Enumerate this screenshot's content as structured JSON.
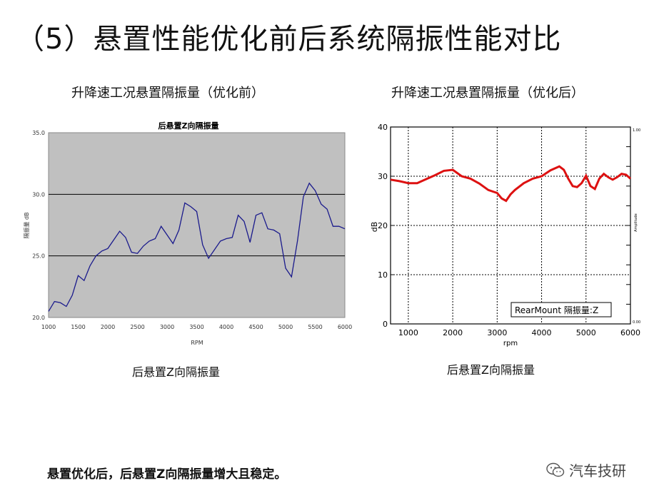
{
  "slide": {
    "title": "（5）悬置性能优化前后系统隔振性能对比",
    "conclusion": "悬置优化后，后悬置Z向隔振量增大且稳定。",
    "watermark": "汽车技研"
  },
  "left_panel": {
    "title": "升降速工况悬置隔振量（优化前）",
    "caption": "后悬置Z向隔振量"
  },
  "right_panel": {
    "title": "升降速工况悬置隔振量（优化后）",
    "caption": "后悬置Z向隔振量"
  },
  "colors": {
    "left_plot_bg": "#c0c0c0",
    "left_line": "#1a1a8c",
    "right_line": "#dd1111"
  },
  "chart_data": [
    {
      "type": "line",
      "title": "后悬置Z向隔振量",
      "xlabel": "RPM",
      "ylabel": "隔振量 dB",
      "xlim": [
        1000,
        6000
      ],
      "ylim": [
        20,
        35
      ],
      "x_ticks": [
        "1000",
        "1500",
        "2000",
        "2500",
        "3000",
        "3500",
        "4000",
        "4500",
        "5000",
        "5500",
        "6000"
      ],
      "y_ticks": [
        "20.0",
        "25.0",
        "30.0",
        "35.0"
      ],
      "grid": "horizontal",
      "series": [
        {
          "x": [
            1000,
            1100,
            1200,
            1300,
            1400,
            1500,
            1600,
            1700,
            1800,
            1900,
            2000,
            2100,
            2200,
            2300,
            2400,
            2500,
            2600,
            2700,
            2800,
            2900,
            3000,
            3100,
            3200,
            3300,
            3400,
            3500,
            3600,
            3700,
            3800,
            3900,
            4000,
            4100,
            4200,
            4300,
            4400,
            4500,
            4600,
            4700,
            4800,
            4900,
            5000,
            5100,
            5200,
            5300,
            5400,
            5500,
            5600,
            5700,
            5800,
            5900,
            6000
          ],
          "values": [
            20.5,
            21.3,
            21.2,
            20.9,
            21.8,
            23.4,
            23.0,
            24.2,
            25.0,
            25.4,
            25.6,
            26.3,
            27.0,
            26.5,
            25.3,
            25.2,
            25.8,
            26.2,
            26.4,
            27.4,
            26.7,
            26.0,
            27.1,
            29.3,
            29.0,
            28.6,
            25.9,
            24.8,
            25.5,
            26.2,
            26.4,
            26.5,
            28.3,
            27.8,
            26.1,
            28.3,
            28.5,
            27.2,
            27.1,
            26.8,
            24.0,
            23.3,
            26.2,
            29.8,
            30.9,
            30.3,
            29.2,
            28.8,
            27.4,
            27.4,
            27.2
          ]
        }
      ]
    },
    {
      "type": "line",
      "xlabel": "rpm",
      "ylabel": "dB",
      "xlim": [
        600,
        6000
      ],
      "ylim": [
        0,
        40
      ],
      "x_ticks": [
        "1000",
        "2000",
        "3000",
        "4000",
        "5000",
        "6000"
      ],
      "y_ticks": [
        "0",
        "10",
        "20",
        "30",
        "40"
      ],
      "right_axis_labels": [
        "1.00",
        "Amplitude",
        "0.00"
      ],
      "grid": "dotted",
      "legend": "bottom-right",
      "series": [
        {
          "name": "RearMount 隔振量:Z",
          "x": [
            600,
            800,
            1000,
            1200,
            1400,
            1600,
            1800,
            2000,
            2200,
            2400,
            2600,
            2800,
            3000,
            3100,
            3200,
            3300,
            3400,
            3600,
            3800,
            4000,
            4200,
            4400,
            4500,
            4600,
            4700,
            4800,
            4900,
            5000,
            5100,
            5200,
            5300,
            5400,
            5500,
            5600,
            5700,
            5800,
            5900,
            6000
          ],
          "values": [
            29.3,
            29.0,
            28.6,
            28.6,
            29.4,
            30.2,
            31.1,
            31.3,
            30.0,
            29.5,
            28.5,
            27.2,
            26.6,
            25.5,
            25.0,
            26.3,
            27.2,
            28.6,
            29.5,
            30.0,
            31.2,
            32.0,
            31.3,
            29.5,
            28.0,
            27.8,
            28.6,
            30.1,
            28.0,
            27.4,
            29.5,
            30.5,
            29.8,
            29.3,
            29.8,
            30.5,
            30.3,
            29.5
          ]
        }
      ]
    }
  ]
}
